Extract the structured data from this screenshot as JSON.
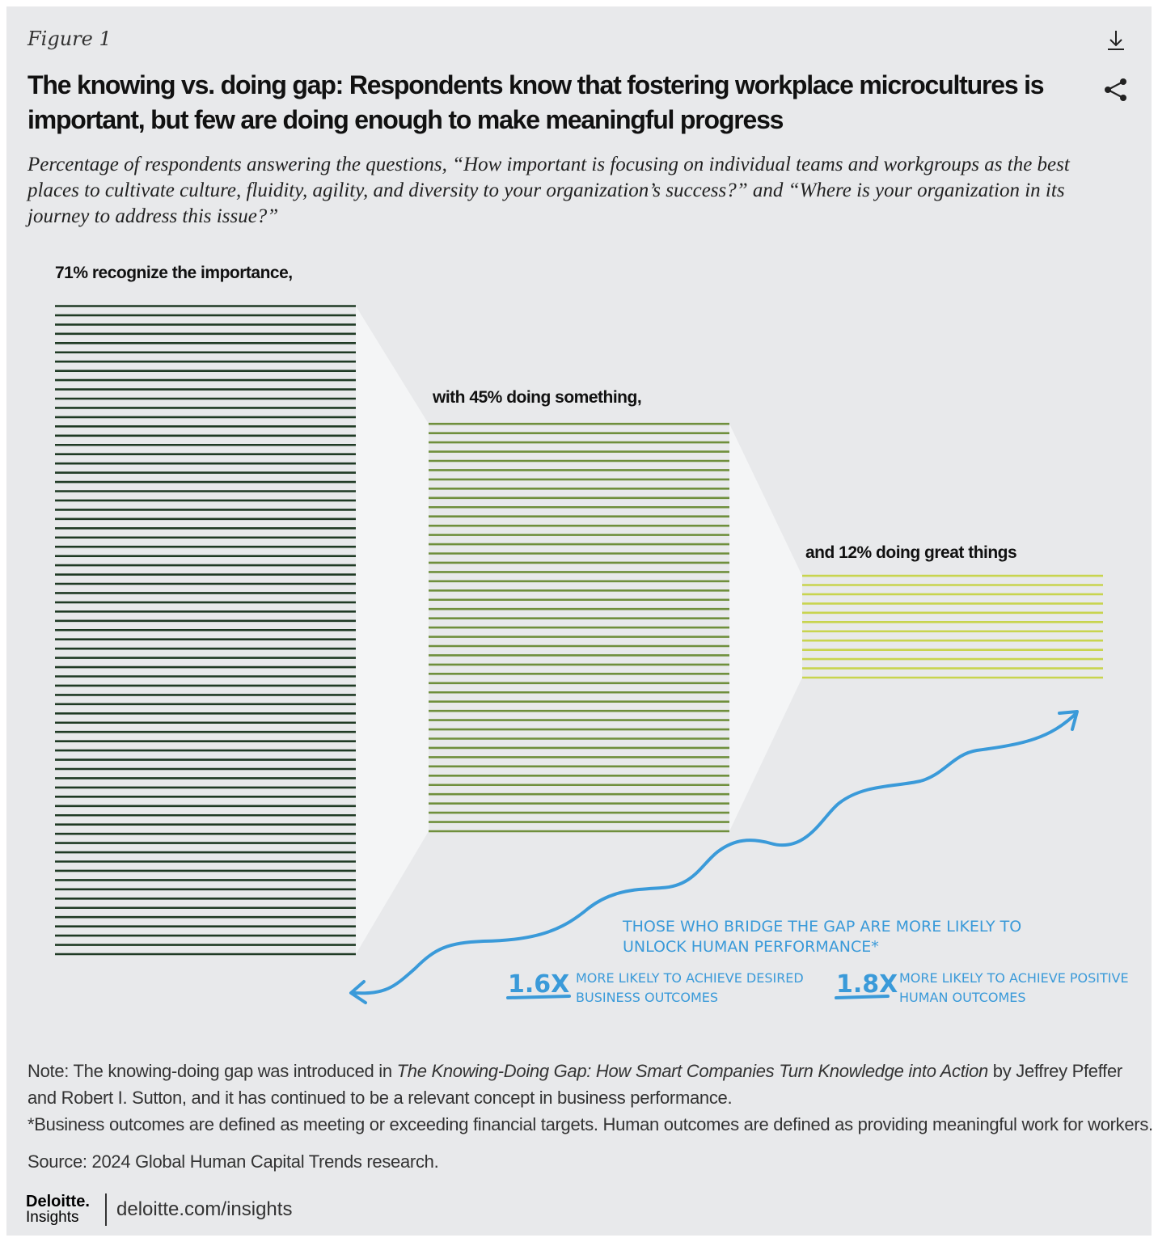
{
  "figure_label": "Figure 1",
  "title": "The knowing vs. doing gap: Respondents know that fostering workplace microcultures is important, but few are doing enough to make meaningful progress",
  "subtitle": "Percentage of respondents answering the questions, “How important is focusing on individual teams and workgroups as the best places to cultivate culture, fluidity, agility, and diversity to your organization’s success?” and “Where is your organization in its journey to address this issue?”",
  "icons": {
    "download": "download-icon",
    "share": "share-icon"
  },
  "chart_data": {
    "type": "bar",
    "categories": [
      "recognize the importance",
      "doing something",
      "doing great things"
    ],
    "values": [
      71,
      45,
      12
    ],
    "unit": "%",
    "labels": [
      "71% recognize the importance,",
      "with 45% doing something,",
      "and 12% doing great things"
    ],
    "colors": [
      "#1f3a24",
      "#6f8f3c",
      "#c8d44e"
    ],
    "annotation": {
      "headline": "Those who bridge the gap are more likely to unlock human performance*",
      "stats": [
        {
          "value": "1.6x",
          "text": "More likely to achieve desired business outcomes"
        },
        {
          "value": "1.8x",
          "text": "More likely to achieve positive human outcomes"
        }
      ],
      "color": "#3a9ad9"
    }
  },
  "notes": {
    "note_prefix": "Note: The knowing-doing gap was introduced in ",
    "note_book": "The Knowing-Doing Gap: How Smart Companies Turn Knowledge into Action",
    "note_suffix": " by Jeffrey Pfeffer and Robert I. Sutton, and it has continued to be a relevant concept in business performance.",
    "footnote": "*Business outcomes are defined as meeting or exceeding financial targets. Human outcomes are defined as providing meaningful work for workers.",
    "source": "Source: 2024 Global Human Capital Trends research."
  },
  "footer": {
    "logo_top": "Deloitte.",
    "logo_bottom": "Insights",
    "url": "deloitte.com/insights"
  }
}
